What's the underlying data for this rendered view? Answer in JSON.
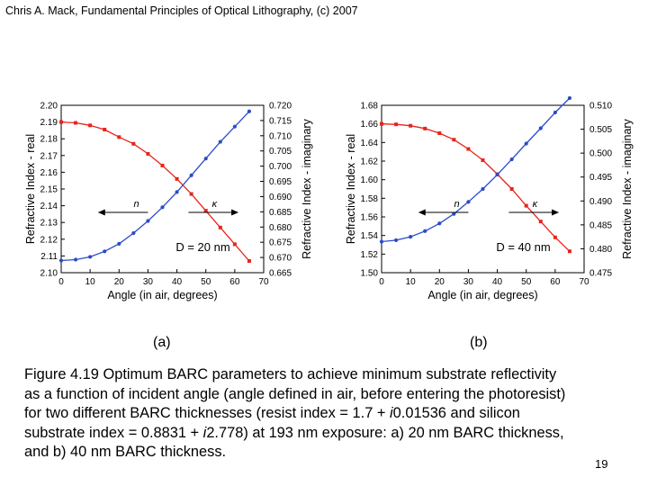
{
  "header": "Chris A. Mack, Fundamental Principles of Optical Lithography, (c) 2007",
  "chart_data": [
    {
      "type": "line",
      "label": "(a)",
      "xlabel": "Angle (in air, degrees)",
      "ylabel": "Refractive Index - real",
      "y2label": "Refractive Index - imaginary",
      "xlim": [
        0,
        70
      ],
      "xticks": [
        0,
        10,
        20,
        30,
        40,
        50,
        60,
        70
      ],
      "ylim": [
        2.1,
        2.2
      ],
      "yticks": [
        "2.10",
        "2.11",
        "2.12",
        "2.13",
        "2.14",
        "2.15",
        "2.16",
        "2.17",
        "2.18",
        "2.19",
        "2.20"
      ],
      "y2lim": [
        0.665,
        0.72
      ],
      "y2ticks": [
        "0.665",
        "0.670",
        "0.675",
        "0.680",
        "0.685",
        "0.690",
        "0.695",
        "0.700",
        "0.705",
        "0.710",
        "0.715",
        "0.720"
      ],
      "series": [
        {
          "name": "n",
          "axis": "left",
          "color": "#e8231b",
          "x": [
            0,
            5,
            10,
            15,
            20,
            25,
            30,
            35,
            40,
            45,
            50,
            55,
            60,
            65
          ],
          "values": [
            2.19,
            2.1895,
            2.188,
            2.1855,
            2.181,
            2.177,
            2.171,
            2.164,
            2.156,
            2.147,
            2.137,
            2.127,
            2.117,
            2.107
          ]
        },
        {
          "name": "κ",
          "axis": "right",
          "color": "#2a4cc9",
          "x": [
            0,
            5,
            10,
            15,
            20,
            25,
            30,
            35,
            40,
            45,
            50,
            55,
            60,
            65
          ],
          "values": [
            0.669,
            0.6693,
            0.6702,
            0.672,
            0.6745,
            0.678,
            0.682,
            0.6865,
            0.6915,
            0.697,
            0.7025,
            0.708,
            0.713,
            0.718
          ]
        }
      ],
      "annotations": {
        "n_label": "n",
        "k_label": "κ",
        "thickness": "D = 20 nm"
      }
    },
    {
      "type": "line",
      "label": "(b)",
      "xlabel": "Angle (in air, degrees)",
      "ylabel": "Refractive Index - real",
      "y2label": "Refractive Index - imaginary",
      "xlim": [
        0,
        70
      ],
      "xticks": [
        0,
        10,
        20,
        30,
        40,
        50,
        60,
        70
      ],
      "ylim": [
        1.5,
        1.68
      ],
      "yticks": [
        "1.50",
        "1.52",
        "1.54",
        "1.56",
        "1.58",
        "1.60",
        "1.62",
        "1.64",
        "1.66",
        "1.68"
      ],
      "y2lim": [
        0.475,
        0.51
      ],
      "y2ticks": [
        "0.475",
        "0.480",
        "0.485",
        "0.490",
        "0.495",
        "0.500",
        "0.505",
        "0.510"
      ],
      "series": [
        {
          "name": "n",
          "axis": "left",
          "color": "#e8231b",
          "x": [
            0,
            5,
            10,
            15,
            20,
            25,
            30,
            35,
            40,
            45,
            50,
            55,
            60,
            65
          ],
          "values": [
            1.66,
            1.6595,
            1.658,
            1.655,
            1.65,
            1.643,
            1.633,
            1.621,
            1.606,
            1.59,
            1.572,
            1.555,
            1.538,
            1.523
          ]
        },
        {
          "name": "κ",
          "axis": "right",
          "color": "#2a4cc9",
          "x": [
            0,
            5,
            10,
            15,
            20,
            25,
            30,
            35,
            40,
            45,
            50,
            55,
            60,
            65
          ],
          "values": [
            0.4815,
            0.4818,
            0.4825,
            0.4837,
            0.4853,
            0.4873,
            0.4898,
            0.4925,
            0.4955,
            0.4987,
            0.502,
            0.5052,
            0.5085,
            0.5115
          ]
        }
      ],
      "annotations": {
        "n_label": "n",
        "k_label": "κ",
        "thickness": "D = 40 nm"
      }
    }
  ],
  "caption": {
    "line1": "Figure 4.19  Optimum BARC parameters to achieve minimum substrate reflectivity",
    "line2": "as a function of incident angle (angle defined in air, before entering the photoresist)",
    "line3_a": "for two different BARC thicknesses (resist index = 1.7 + ",
    "italic_i": "i",
    "line3_b": "0.01536 and silicon",
    "line4_a": "substrate index = 0.8831 + ",
    "line4_b": "2.778) at 193 nm exposure:  a) 20 nm BARC thickness,",
    "line5": "and b) 40 nm BARC thickness."
  },
  "page_number": "19"
}
